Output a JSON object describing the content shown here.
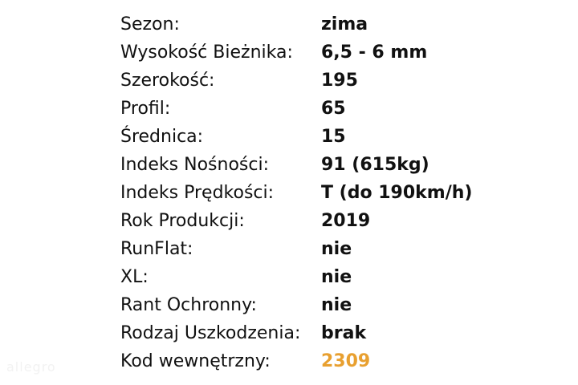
{
  "specs": [
    {
      "label": "Sezon:",
      "value": "zima"
    },
    {
      "label": "Wysokość Bieżnika:",
      "value": "6,5 - 6 mm"
    },
    {
      "label": "Szerokość:",
      "value": "195"
    },
    {
      "label": "Profil:",
      "value": "65"
    },
    {
      "label": "Średnica:",
      "value": "15"
    },
    {
      "label": "Indeks Nośności:",
      "value": "91 (615kg)"
    },
    {
      "label": "Indeks Prędkości:",
      "value": "T (do 190km/h)"
    },
    {
      "label": "Rok Produkcji:",
      "value": "2019"
    },
    {
      "label": "RunFlat:",
      "value": "nie"
    },
    {
      "label": "XL:",
      "value": "nie"
    },
    {
      "label": "Rant Ochronny:",
      "value": "nie"
    },
    {
      "label": "Rodzaj Uszkodzenia:",
      "value": "brak"
    },
    {
      "label": "Kod wewnętrzny:",
      "value": "2309",
      "color": "#e8a030"
    }
  ],
  "watermark": "allegro"
}
